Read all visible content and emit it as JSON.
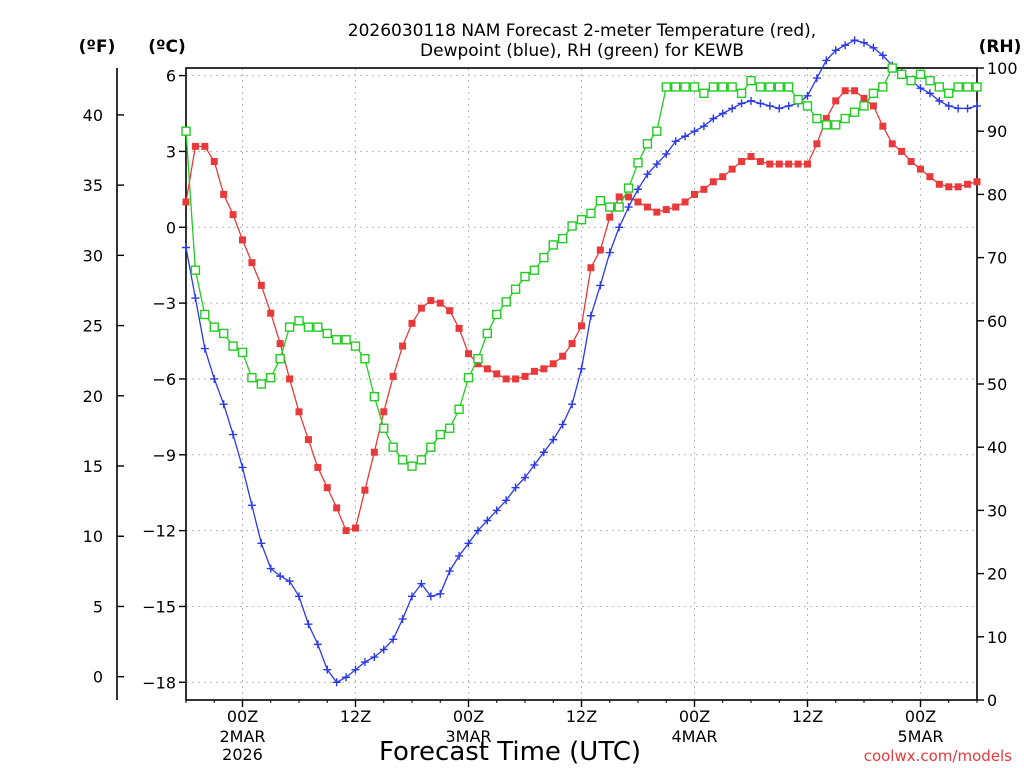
{
  "chart_data": {
    "type": "line",
    "title_line1": "2026030118 NAM Forecast 2-meter Temperature (red),",
    "title_line2": "Dewpoint (blue), RH (green) for KEWB",
    "xlabel": "Forecast Time (UTC)",
    "watermark": "coolwx.com/models",
    "left_axis_f_label": "(ºF)",
    "left_axis_c_label": "(ºC)",
    "right_axis_label": "(RH)",
    "x_range_hours": [
      0,
      84
    ],
    "c_range": [
      -18.7,
      6.3
    ],
    "rh_range": [
      0,
      100
    ],
    "c_ticks": [
      6,
      3,
      0,
      -3,
      -6,
      -9,
      -12,
      -15,
      -18
    ],
    "f_ticks": [
      40,
      35,
      30,
      25,
      20,
      15,
      10,
      5,
      0
    ],
    "rh_ticks": [
      100,
      90,
      80,
      70,
      60,
      50,
      40,
      30,
      20,
      10,
      0
    ],
    "x_ticks": [
      {
        "hour": 6,
        "label": "00Z",
        "date": "2MAR",
        "year": "2026"
      },
      {
        "hour": 18,
        "label": "12Z",
        "date": "",
        "year": ""
      },
      {
        "hour": 30,
        "label": "00Z",
        "date": "3MAR",
        "year": ""
      },
      {
        "hour": 42,
        "label": "12Z",
        "date": "",
        "year": ""
      },
      {
        "hour": 54,
        "label": "00Z",
        "date": "4MAR",
        "year": ""
      },
      {
        "hour": 66,
        "label": "12Z",
        "date": "",
        "year": ""
      },
      {
        "hour": 78,
        "label": "00Z",
        "date": "5MAR",
        "year": ""
      }
    ],
    "colors": {
      "temperature": "#e83a3a",
      "dewpoint": "#2b3ae8",
      "rh": "#22cc22"
    },
    "series": [
      {
        "name": "Temperature (°C)",
        "key": "temperature",
        "axis": "c",
        "points": [
          [
            0,
            1.0
          ],
          [
            1,
            3.2
          ],
          [
            2,
            3.2
          ],
          [
            3,
            2.6
          ],
          [
            4,
            1.3
          ],
          [
            5,
            0.5
          ],
          [
            6,
            -0.5
          ],
          [
            7,
            -1.4
          ],
          [
            8,
            -2.3
          ],
          [
            9,
            -3.4
          ],
          [
            10,
            -4.6
          ],
          [
            11,
            -6.0
          ],
          [
            12,
            -7.3
          ],
          [
            13,
            -8.4
          ],
          [
            14,
            -9.5
          ],
          [
            15,
            -10.3
          ],
          [
            16,
            -11.1
          ],
          [
            17,
            -12.0
          ],
          [
            18,
            -11.9
          ],
          [
            19,
            -10.4
          ],
          [
            20,
            -8.9
          ],
          [
            21,
            -7.3
          ],
          [
            22,
            -5.9
          ],
          [
            23,
            -4.7
          ],
          [
            24,
            -3.8
          ],
          [
            25,
            -3.2
          ],
          [
            26,
            -2.9
          ],
          [
            27,
            -3.0
          ],
          [
            28,
            -3.3
          ],
          [
            29,
            -4.0
          ],
          [
            30,
            -5.0
          ],
          [
            31,
            -5.4
          ],
          [
            32,
            -5.6
          ],
          [
            33,
            -5.8
          ],
          [
            34,
            -6.0
          ],
          [
            35,
            -6.0
          ],
          [
            36,
            -5.9
          ],
          [
            37,
            -5.7
          ],
          [
            38,
            -5.6
          ],
          [
            39,
            -5.4
          ],
          [
            40,
            -5.1
          ],
          [
            41,
            -4.6
          ],
          [
            42,
            -3.9
          ],
          [
            43,
            -1.6
          ],
          [
            44,
            -0.9
          ],
          [
            45,
            0.4
          ],
          [
            46,
            1.2
          ],
          [
            47,
            1.2
          ],
          [
            48,
            1.0
          ],
          [
            49,
            0.8
          ],
          [
            50,
            0.6
          ],
          [
            51,
            0.7
          ],
          [
            52,
            0.8
          ],
          [
            53,
            1.0
          ],
          [
            54,
            1.3
          ],
          [
            55,
            1.5
          ],
          [
            56,
            1.8
          ],
          [
            57,
            2.0
          ],
          [
            58,
            2.3
          ],
          [
            59,
            2.6
          ],
          [
            60,
            2.8
          ],
          [
            61,
            2.6
          ],
          [
            62,
            2.5
          ],
          [
            63,
            2.5
          ],
          [
            64,
            2.5
          ],
          [
            65,
            2.5
          ],
          [
            66,
            2.5
          ],
          [
            67,
            3.3
          ],
          [
            68,
            4.3
          ],
          [
            69,
            5.0
          ],
          [
            70,
            5.4
          ],
          [
            71,
            5.4
          ],
          [
            72,
            5.1
          ],
          [
            73,
            4.8
          ],
          [
            74,
            4.0
          ],
          [
            75,
            3.3
          ],
          [
            76,
            3.0
          ],
          [
            77,
            2.6
          ],
          [
            78,
            2.3
          ],
          [
            79,
            2.0
          ],
          [
            80,
            1.7
          ],
          [
            81,
            1.6
          ],
          [
            82,
            1.6
          ],
          [
            83,
            1.7
          ],
          [
            84,
            1.8
          ]
        ]
      },
      {
        "name": "Dewpoint (°C)",
        "key": "dewpoint",
        "axis": "c",
        "points": [
          [
            0,
            -0.8
          ],
          [
            1,
            -2.8
          ],
          [
            2,
            -4.8
          ],
          [
            3,
            -6.0
          ],
          [
            4,
            -7.0
          ],
          [
            5,
            -8.2
          ],
          [
            6,
            -9.5
          ],
          [
            7,
            -11.0
          ],
          [
            8,
            -12.5
          ],
          [
            9,
            -13.5
          ],
          [
            10,
            -13.8
          ],
          [
            11,
            -14.0
          ],
          [
            12,
            -14.6
          ],
          [
            13,
            -15.7
          ],
          [
            14,
            -16.5
          ],
          [
            15,
            -17.5
          ],
          [
            16,
            -18.0
          ],
          [
            17,
            -17.8
          ],
          [
            18,
            -17.5
          ],
          [
            19,
            -17.2
          ],
          [
            20,
            -17.0
          ],
          [
            21,
            -16.7
          ],
          [
            22,
            -16.3
          ],
          [
            23,
            -15.5
          ],
          [
            24,
            -14.6
          ],
          [
            25,
            -14.1
          ],
          [
            26,
            -14.6
          ],
          [
            27,
            -14.5
          ],
          [
            28,
            -13.6
          ],
          [
            29,
            -13.0
          ],
          [
            30,
            -12.5
          ],
          [
            31,
            -12.0
          ],
          [
            32,
            -11.6
          ],
          [
            33,
            -11.2
          ],
          [
            34,
            -10.8
          ],
          [
            35,
            -10.3
          ],
          [
            36,
            -9.9
          ],
          [
            37,
            -9.4
          ],
          [
            38,
            -8.9
          ],
          [
            39,
            -8.4
          ],
          [
            40,
            -7.8
          ],
          [
            41,
            -7.0
          ],
          [
            42,
            -5.6
          ],
          [
            43,
            -3.5
          ],
          [
            44,
            -2.3
          ],
          [
            45,
            -1.0
          ],
          [
            46,
            0.0
          ],
          [
            47,
            0.8
          ],
          [
            48,
            1.5
          ],
          [
            49,
            2.1
          ],
          [
            50,
            2.5
          ],
          [
            51,
            2.9
          ],
          [
            52,
            3.4
          ],
          [
            53,
            3.6
          ],
          [
            54,
            3.8
          ],
          [
            55,
            4.0
          ],
          [
            56,
            4.3
          ],
          [
            57,
            4.5
          ],
          [
            58,
            4.7
          ],
          [
            59,
            4.9
          ],
          [
            60,
            5.0
          ],
          [
            61,
            4.9
          ],
          [
            62,
            4.8
          ],
          [
            63,
            4.7
          ],
          [
            64,
            4.8
          ],
          [
            65,
            4.9
          ],
          [
            66,
            5.2
          ],
          [
            67,
            5.9
          ],
          [
            68,
            6.6
          ],
          [
            69,
            7.0
          ],
          [
            70,
            7.2
          ],
          [
            71,
            7.4
          ],
          [
            72,
            7.3
          ],
          [
            73,
            7.1
          ],
          [
            74,
            6.8
          ],
          [
            75,
            6.4
          ],
          [
            76,
            6.1
          ],
          [
            77,
            5.8
          ],
          [
            78,
            5.5
          ],
          [
            79,
            5.3
          ],
          [
            80,
            5.0
          ],
          [
            81,
            4.8
          ],
          [
            82,
            4.7
          ],
          [
            83,
            4.7
          ],
          [
            84,
            4.8
          ]
        ]
      },
      {
        "name": "RH (%)",
        "key": "rh",
        "axis": "rh",
        "points": [
          [
            0,
            90
          ],
          [
            1,
            68
          ],
          [
            2,
            61
          ],
          [
            3,
            59
          ],
          [
            4,
            58
          ],
          [
            5,
            56
          ],
          [
            6,
            55
          ],
          [
            7,
            51
          ],
          [
            8,
            50
          ],
          [
            9,
            51
          ],
          [
            10,
            54
          ],
          [
            11,
            59
          ],
          [
            12,
            60
          ],
          [
            13,
            59
          ],
          [
            14,
            59
          ],
          [
            15,
            58
          ],
          [
            16,
            57
          ],
          [
            17,
            57
          ],
          [
            18,
            56
          ],
          [
            19,
            54
          ],
          [
            20,
            48
          ],
          [
            21,
            43
          ],
          [
            22,
            40
          ],
          [
            23,
            38
          ],
          [
            24,
            37
          ],
          [
            25,
            38
          ],
          [
            26,
            40
          ],
          [
            27,
            42
          ],
          [
            28,
            43
          ],
          [
            29,
            46
          ],
          [
            30,
            51
          ],
          [
            31,
            54
          ],
          [
            32,
            58
          ],
          [
            33,
            61
          ],
          [
            34,
            63
          ],
          [
            35,
            65
          ],
          [
            36,
            67
          ],
          [
            37,
            68
          ],
          [
            38,
            70
          ],
          [
            39,
            72
          ],
          [
            40,
            73
          ],
          [
            41,
            75
          ],
          [
            42,
            76
          ],
          [
            43,
            77
          ],
          [
            44,
            79
          ],
          [
            45,
            78
          ],
          [
            46,
            78
          ],
          [
            47,
            81
          ],
          [
            48,
            85
          ],
          [
            49,
            88
          ],
          [
            50,
            90
          ],
          [
            51,
            97
          ],
          [
            52,
            97
          ],
          [
            53,
            97
          ],
          [
            54,
            97
          ],
          [
            55,
            96
          ],
          [
            56,
            97
          ],
          [
            57,
            97
          ],
          [
            58,
            97
          ],
          [
            59,
            96
          ],
          [
            60,
            98
          ],
          [
            61,
            97
          ],
          [
            62,
            97
          ],
          [
            63,
            97
          ],
          [
            64,
            97
          ],
          [
            65,
            95
          ],
          [
            66,
            94
          ],
          [
            67,
            92
          ],
          [
            68,
            91
          ],
          [
            69,
            91
          ],
          [
            70,
            92
          ],
          [
            71,
            93
          ],
          [
            72,
            94
          ],
          [
            73,
            96
          ],
          [
            74,
            97
          ],
          [
            75,
            100
          ],
          [
            76,
            99
          ],
          [
            77,
            98
          ],
          [
            78,
            99
          ],
          [
            79,
            98
          ],
          [
            80,
            97
          ],
          [
            81,
            96
          ],
          [
            82,
            97
          ],
          [
            83,
            97
          ],
          [
            84,
            97
          ]
        ]
      }
    ]
  }
}
